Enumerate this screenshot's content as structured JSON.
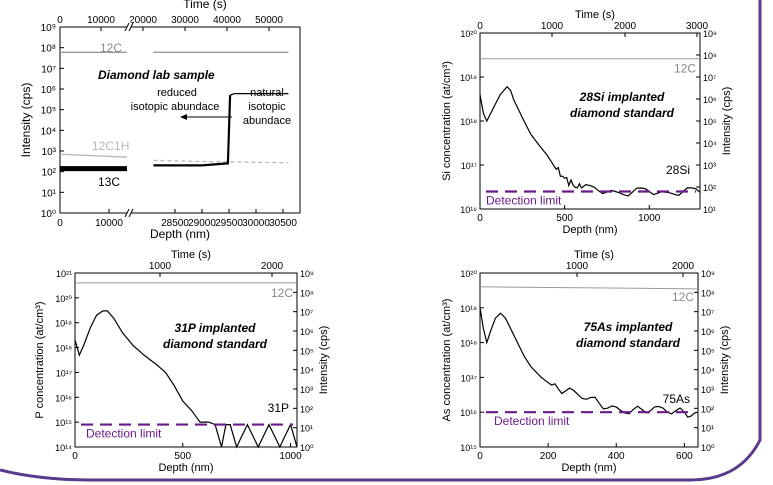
{
  "chart_data": [
    {
      "type": "line",
      "title": "Diamond lab sample",
      "xlabel": "Depth (nm)",
      "x2label": "Time (s)",
      "ylabel": "Intensity (cps)",
      "yscale": "log",
      "ylim": [
        1,
        1000000000
      ],
      "x_ticks": [
        "0",
        "10000",
        "28500",
        "29000",
        "29500",
        "30000",
        "30500"
      ],
      "x2_ticks": [
        "0",
        "10000",
        "20000",
        "30000",
        "40000",
        "50000"
      ],
      "y_ticks": [
        "10⁰",
        "10¹",
        "10²",
        "10³",
        "10⁴",
        "10⁵",
        "10⁶",
        "10⁷",
        "10⁸",
        "10⁹"
      ],
      "annotations": [
        "reduced",
        "isotopic abundace",
        "natural",
        "isotopic",
        "abundace"
      ],
      "series": [
        {
          "name": "12C",
          "color": "#9a9a9a",
          "x_nm": [
            0,
            12000,
            28100,
            30600
          ],
          "values": [
            60000000,
            60000000,
            60000000,
            60000000
          ]
        },
        {
          "name": "12C1H",
          "color": "#b8b8b8",
          "x_nm": [
            0,
            12000,
            28100,
            29250,
            29500,
            30600
          ],
          "values": [
            700,
            500,
            350,
            300,
            300,
            270
          ]
        },
        {
          "name": "13C",
          "color": "#000000",
          "x_nm": [
            0,
            12000,
            28100,
            29000,
            29480,
            29520,
            29600,
            30600
          ],
          "values": [
            140,
            140,
            200,
            200,
            250,
            500000,
            600000,
            600000
          ]
        }
      ]
    },
    {
      "type": "line",
      "title_lines": [
        "28Si implanted",
        "diamond standard"
      ],
      "xlabel": "Depth (nm)",
      "x2label": "Time (s)",
      "ylabel": "Si concentration (at/cm³)",
      "y2label": "Intensity (cps)",
      "xlim": [
        0,
        1300
      ],
      "ylim": [
        1e+16,
        1e+20
      ],
      "x_ticks": [
        "0",
        "500",
        "1000"
      ],
      "x2_ticks": [
        "0",
        "1000",
        "2000",
        "3000"
      ],
      "y_ticks": [
        "10¹⁶",
        "10¹⁷",
        "10¹⁸",
        "10¹⁹",
        "10²⁰"
      ],
      "y2_ticks": [
        "10¹",
        "10²",
        "10³",
        "10⁴",
        "10⁵",
        "10⁶",
        "10⁷",
        "10⁸",
        "10⁹"
      ],
      "detection_limit": {
        "label": "Detection limit",
        "value": 2.5e+16
      },
      "series": [
        {
          "name": "12C",
          "color": "#9a9a9a",
          "x": [
            0,
            1300
          ],
          "values": [
            2.6e+19,
            2.6e+19
          ]
        },
        {
          "name": "28Si",
          "color": "#000000",
          "x": [
            0,
            20,
            40,
            80,
            120,
            160,
            180,
            200,
            250,
            300,
            350,
            400,
            450,
            500,
            550,
            600,
            700,
            800,
            900,
            1000,
            1100,
            1200,
            1300
          ],
          "values": [
            4e+18,
            1.5e+18,
            1e+18,
            2e+18,
            4e+18,
            6e+18,
            5e+18,
            3e+18,
            1.2e+18,
            5e+17,
            2.8e+17,
            1.6e+17,
            8e+16,
            5e+16,
            3.5e+16,
            3e+16,
            2.6e+16,
            2.5e+16,
            2.4e+16,
            2.5e+16,
            2.4e+16,
            2.5e+16,
            2.4e+16
          ]
        }
      ]
    },
    {
      "type": "line",
      "title_lines": [
        "31P implanted",
        "diamond standard"
      ],
      "xlabel": "Depth (nm)",
      "x2label": "Time (s)",
      "ylabel": "P concentration (at/cm³)",
      "y2label": "Intensity (cps)",
      "xlim": [
        0,
        1030
      ],
      "ylim": [
        100000000000000.0,
        1e+21
      ],
      "x_ticks": [
        "0",
        "500",
        "1000"
      ],
      "x2_ticks": [
        "1000",
        "2000"
      ],
      "y_ticks": [
        "10¹⁴",
        "10¹⁵",
        "10¹⁶",
        "10¹⁷",
        "10¹⁸",
        "10¹⁹",
        "10²⁰",
        "10²¹"
      ],
      "y2_ticks": [
        "10⁰",
        "10¹",
        "10²",
        "10³",
        "10⁴",
        "10⁵",
        "10⁶",
        "10⁷",
        "10⁸",
        "10⁹"
      ],
      "detection_limit": {
        "label": "Detection limit",
        "value": 800000000000000.0
      },
      "series": [
        {
          "name": "12C",
          "color": "#9a9a9a",
          "x": [
            0,
            1030
          ],
          "values": [
            4e+20,
            4e+20
          ]
        },
        {
          "name": "31P",
          "color": "#000000",
          "x": [
            0,
            20,
            40,
            70,
            100,
            130,
            150,
            180,
            220,
            270,
            320,
            380,
            420,
            460,
            500,
            540,
            580,
            620,
            650,
            680,
            700,
            720,
            750,
            800,
            850,
            900,
            950,
            1000,
            1030
          ],
          "values": [
            2e+18,
            5e+17,
            1.2e+18,
            6e+18,
            2e+19,
            3e+19,
            3e+19,
            1.5e+19,
            4e+18,
            1.2e+18,
            5e+17,
            2e+17,
            1e+17,
            3e+16,
            7000000000000000.0,
            3000000000000000.0,
            1000000000000000.0,
            1000000000000000.0,
            800000000000000.0,
            100000000000000.0,
            800000000000000.0,
            800000000000000.0,
            100000000000000.0,
            800000000000000.0,
            100000000000000.0,
            800000000000000.0,
            100000000000000.0,
            800000000000000.0,
            100000000000000.0
          ]
        }
      ]
    },
    {
      "type": "line",
      "title_lines": [
        "75As implanted",
        "diamond standard"
      ],
      "xlabel": "Depth (nm)",
      "x2label": "Time (s)",
      "ylabel": "As concentration (at/cm³)",
      "y2label": "Intensity (cps)",
      "xlim": [
        0,
        640
      ],
      "ylim": [
        1000000000000000.0,
        1e+20
      ],
      "x_ticks": [
        "0",
        "200",
        "400",
        "600"
      ],
      "x2_ticks": [
        "1000",
        "2000"
      ],
      "y_ticks": [
        "10¹⁵",
        "10¹⁶",
        "10¹⁷",
        "10¹⁸",
        "10¹⁹",
        "10²⁰"
      ],
      "y2_ticks": [
        "10⁰",
        "10¹",
        "10²",
        "10³",
        "10⁴",
        "10⁵",
        "10⁶",
        "10⁷",
        "10⁸",
        "10⁹"
      ],
      "detection_limit": {
        "label": "Detection limit",
        "value": 1e+16
      },
      "series": [
        {
          "name": "12C",
          "color": "#9a9a9a",
          "x": [
            0,
            640
          ],
          "values": [
            4e+19,
            3.5e+19
          ]
        },
        {
          "name": "75As",
          "color": "#000000",
          "x": [
            0,
            10,
            20,
            30,
            45,
            60,
            75,
            90,
            110,
            130,
            150,
            180,
            210,
            250,
            300,
            350,
            400,
            450,
            500,
            550,
            600,
            640
          ],
          "values": [
            1e+19,
            2.5e+18,
            1e+18,
            2e+18,
            5e+18,
            7e+18,
            5e+18,
            2.5e+18,
            1e+18,
            4e+17,
            2e+17,
            1e+17,
            6e+16,
            4e+16,
            2.5e+16,
            1.8e+16,
            1.4e+16,
            1.2e+16,
            1.1e+16,
            1e+16,
            1e+16,
            1e+16
          ]
        }
      ]
    }
  ]
}
